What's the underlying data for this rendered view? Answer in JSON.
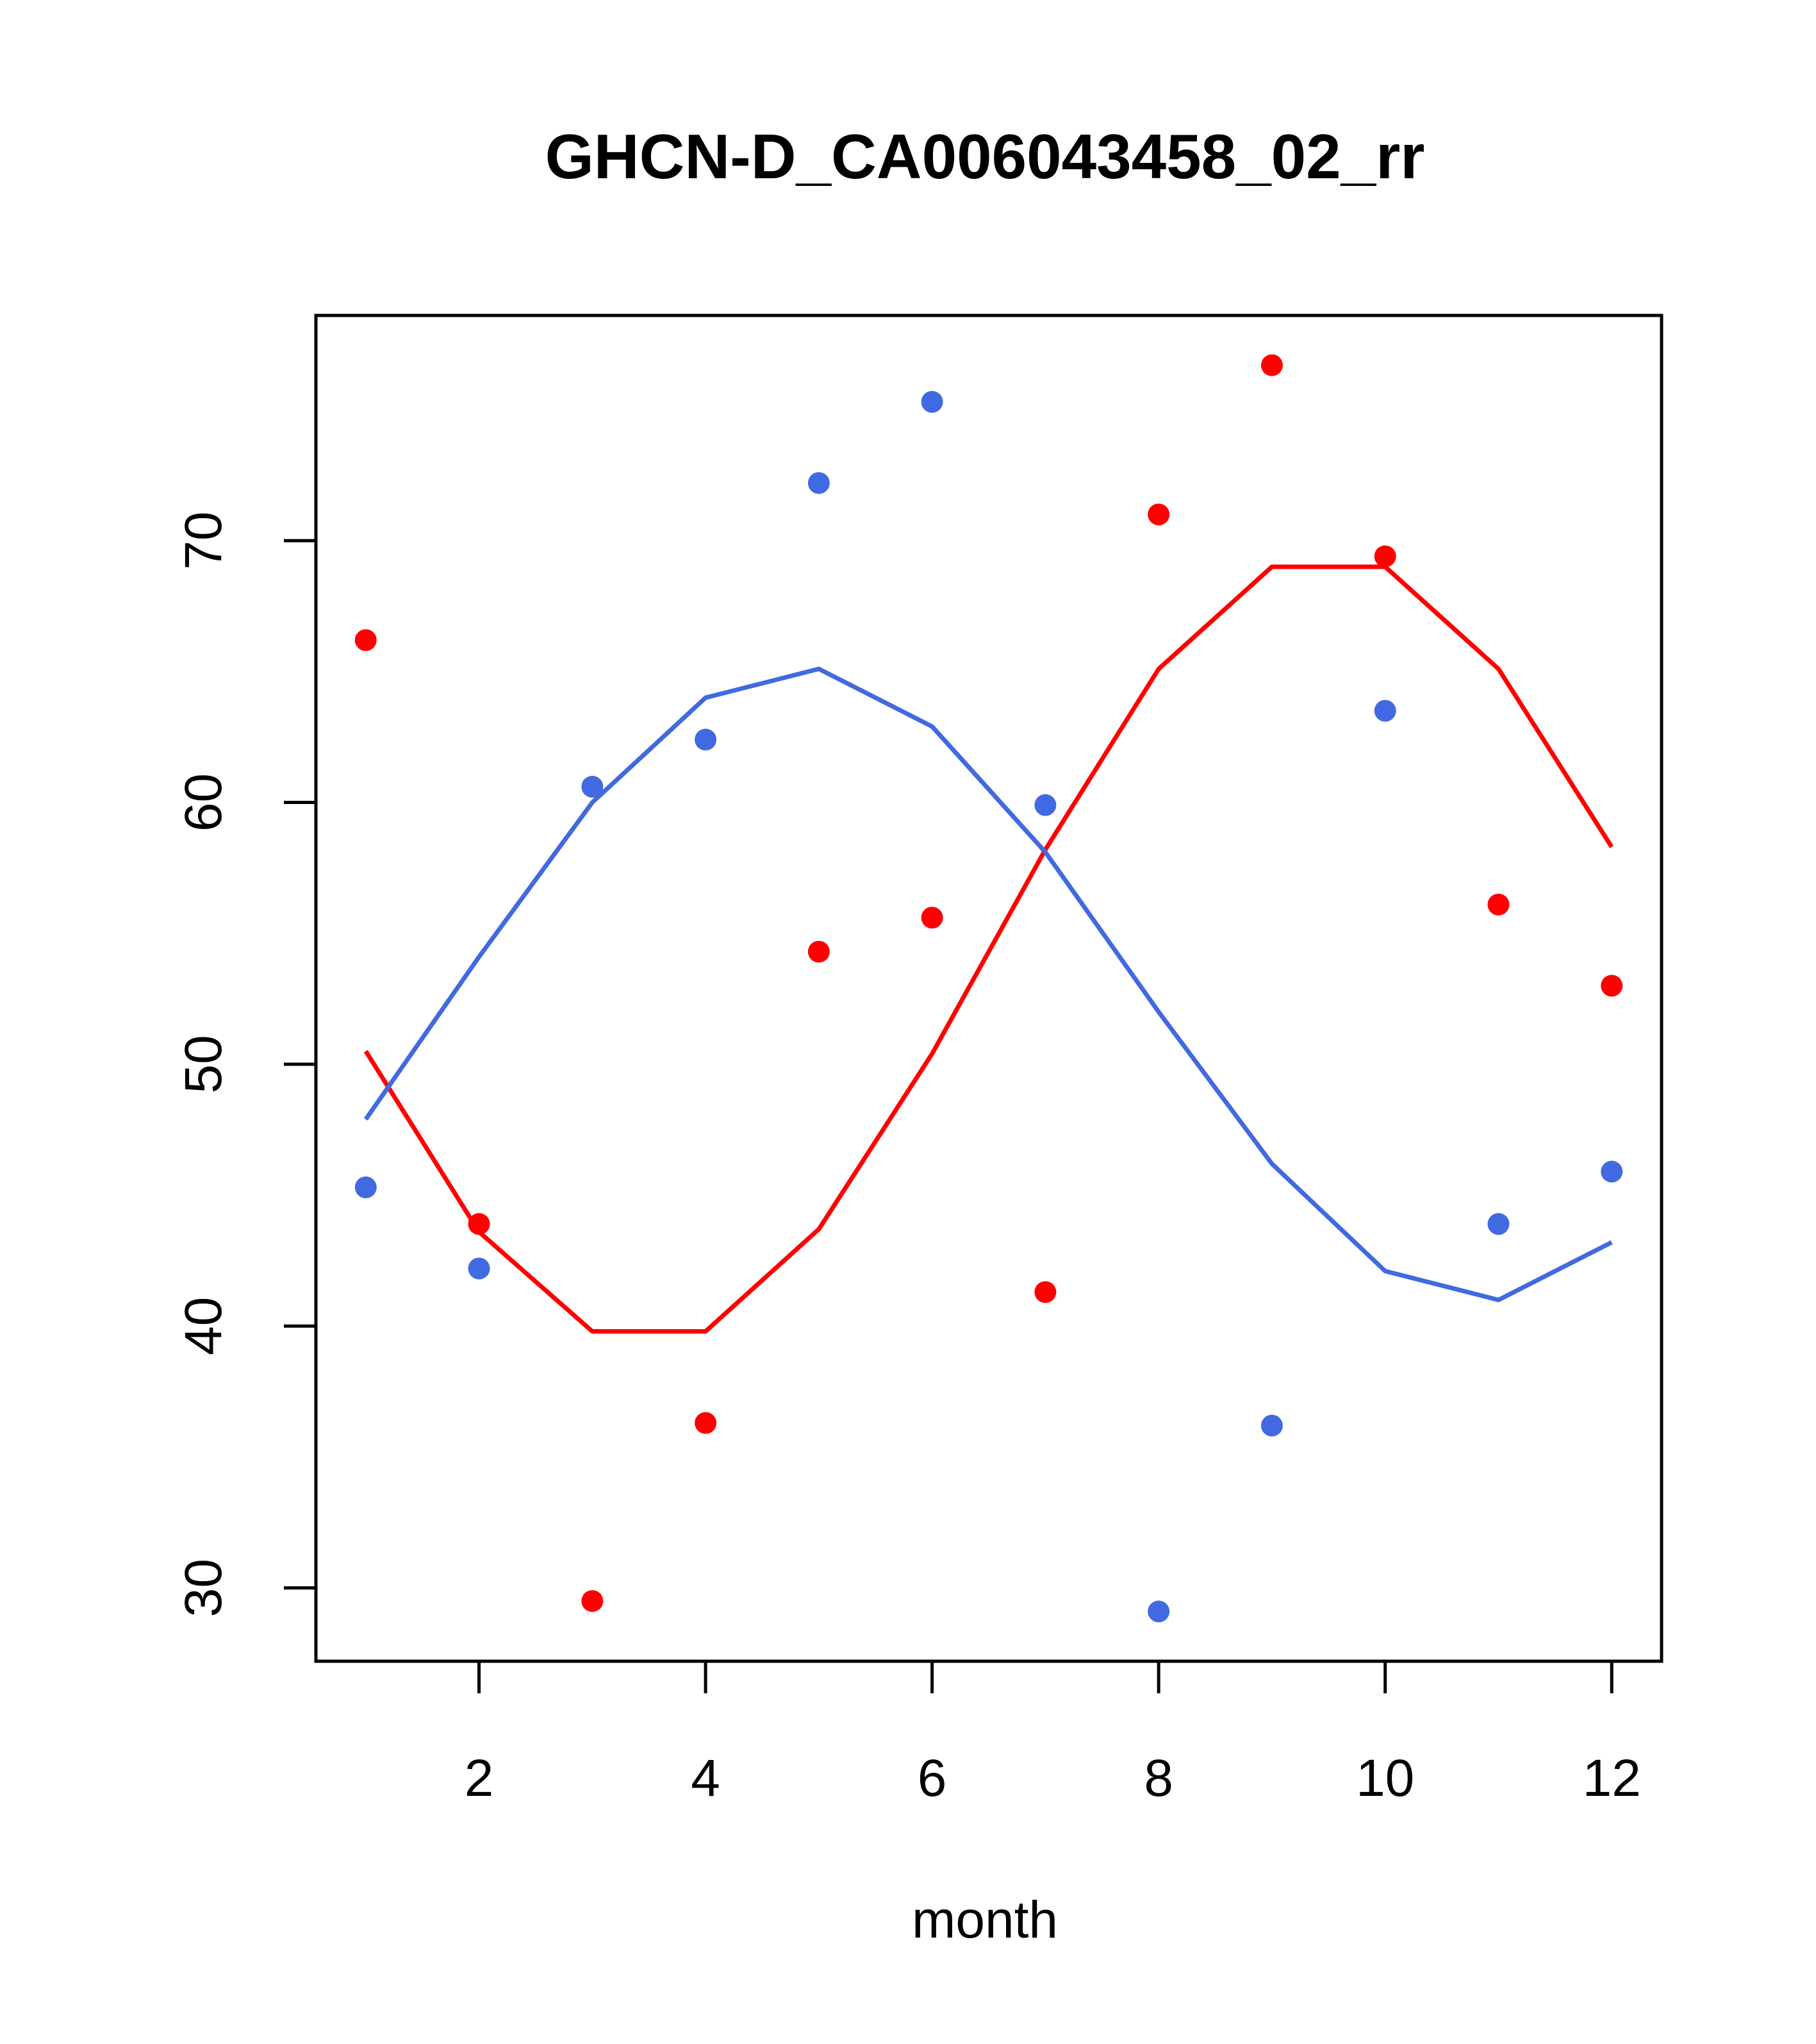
{
  "chart_data": {
    "type": "scatter",
    "title": "GHCN-D_CA006043458_02_rr",
    "xlabel": "month",
    "ylabel": "",
    "xlim": [
      0.56,
      12.44
    ],
    "ylim": [
      27.2,
      78.6
    ],
    "xticks": [
      2,
      4,
      6,
      8,
      10,
      12
    ],
    "yticks": [
      30,
      40,
      50,
      60,
      70
    ],
    "grid": false,
    "series": [
      {
        "kind": "points",
        "color": "#ff0000",
        "x": [
          1,
          2,
          3,
          4,
          5,
          6,
          7,
          8,
          9,
          10,
          11,
          12
        ],
        "values": [
          66.2,
          43.9,
          29.5,
          36.3,
          54.3,
          55.6,
          41.3,
          71.0,
          76.7,
          69.4,
          56.1,
          53.0
        ]
      },
      {
        "kind": "points",
        "color": "#4169e1",
        "x": [
          1,
          2,
          3,
          4,
          5,
          6,
          7,
          8,
          9,
          10,
          11,
          12
        ],
        "values": [
          45.3,
          42.2,
          60.6,
          62.4,
          72.2,
          75.3,
          59.9,
          29.1,
          36.2,
          63.5,
          43.9,
          45.9
        ]
      },
      {
        "kind": "line",
        "color": "#ff0000",
        "x": [
          1,
          2,
          3,
          4,
          5,
          6,
          7,
          8,
          9,
          10,
          11,
          12
        ],
        "values": [
          50.5,
          43.6,
          39.8,
          39.8,
          43.7,
          50.4,
          58.2,
          65.1,
          69.0,
          69.0,
          65.1,
          58.3
        ]
      },
      {
        "kind": "line",
        "color": "#4169e1",
        "x": [
          1,
          2,
          3,
          4,
          5,
          6,
          7,
          8,
          9,
          10,
          11,
          12
        ],
        "values": [
          47.9,
          54.1,
          60.0,
          64.0,
          65.1,
          62.9,
          58.1,
          52.0,
          46.2,
          42.1,
          41.0,
          43.2
        ]
      }
    ]
  }
}
